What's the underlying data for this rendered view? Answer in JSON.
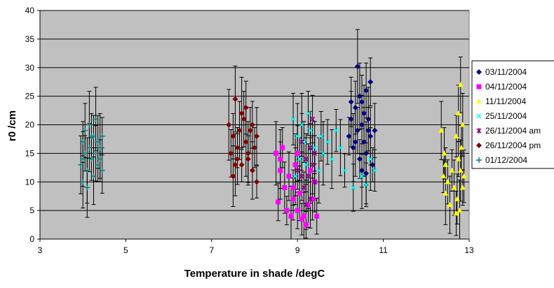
{
  "chart_data": {
    "type": "scatter",
    "title": "",
    "xlabel": "Temperature in shade /degC",
    "ylabel": "r0 /cm",
    "xlim": [
      3,
      13
    ],
    "ylim": [
      0,
      40
    ],
    "x_ticks": [
      3,
      5,
      7,
      9,
      11,
      13
    ],
    "y_ticks": [
      0,
      5,
      10,
      15,
      20,
      25,
      30,
      35,
      40
    ],
    "grid": "horizontal",
    "error_bars": "vertical",
    "legend_position": "right",
    "plot_background": "#c0c0c0",
    "series": [
      {
        "name": "03/11/2004",
        "color": "#000080",
        "marker": "diamond",
        "points": [
          [
            10.2,
            18
          ],
          [
            10.25,
            21
          ],
          [
            10.3,
            16
          ],
          [
            10.35,
            23
          ],
          [
            10.4,
            30.2
          ],
          [
            10.4,
            19
          ],
          [
            10.45,
            25
          ],
          [
            10.45,
            14
          ],
          [
            10.5,
            20
          ],
          [
            10.5,
            12
          ],
          [
            10.55,
            22
          ],
          [
            10.55,
            17
          ],
          [
            10.6,
            26
          ],
          [
            10.6,
            15
          ],
          [
            10.65,
            19
          ],
          [
            10.65,
            21
          ],
          [
            10.7,
            27.5
          ],
          [
            10.7,
            18
          ],
          [
            10.75,
            13
          ],
          [
            10.8,
            19
          ],
          [
            10.35,
            17
          ],
          [
            10.5,
            24
          ],
          [
            10.6,
            11.5
          ],
          [
            10.25,
            24
          ]
        ]
      },
      {
        "name": "04/11/2004",
        "color": "#ff00ff",
        "marker": "square",
        "points": [
          [
            8.5,
            15
          ],
          [
            8.55,
            6.5
          ],
          [
            8.6,
            12
          ],
          [
            8.65,
            16
          ],
          [
            8.7,
            9
          ],
          [
            8.75,
            5
          ],
          [
            8.8,
            11
          ],
          [
            8.85,
            4
          ],
          [
            8.9,
            7
          ],
          [
            8.95,
            13
          ],
          [
            9.0,
            5
          ],
          [
            9.05,
            8
          ],
          [
            9.1,
            3.5
          ],
          [
            9.15,
            4
          ],
          [
            9.2,
            2.5
          ],
          [
            9.25,
            6
          ],
          [
            9.3,
            12
          ],
          [
            9.35,
            7
          ],
          [
            9.4,
            10
          ],
          [
            9.45,
            4
          ],
          [
            8.6,
            14
          ],
          [
            8.9,
            9
          ],
          [
            9.0,
            15
          ]
        ]
      },
      {
        "name": "11/11/2004",
        "color": "#ffff00",
        "marker": "triangle",
        "points": [
          [
            12.35,
            19
          ],
          [
            12.4,
            11
          ],
          [
            12.42,
            15
          ],
          [
            12.45,
            8
          ],
          [
            12.5,
            10
          ],
          [
            12.55,
            6
          ],
          [
            12.6,
            12
          ],
          [
            12.65,
            9
          ],
          [
            12.7,
            18
          ],
          [
            12.72,
            7
          ],
          [
            12.75,
            14
          ],
          [
            12.75,
            22
          ],
          [
            12.78,
            5
          ],
          [
            12.8,
            27
          ],
          [
            12.8,
            12
          ],
          [
            12.82,
            16
          ],
          [
            12.85,
            20
          ],
          [
            12.85,
            9
          ],
          [
            12.88,
            11
          ],
          [
            12.45,
            13
          ],
          [
            12.7,
            4.5
          ]
        ]
      },
      {
        "name": "25/11/2004",
        "color": "#00ffff",
        "marker": "x",
        "points": [
          [
            8.9,
            21
          ],
          [
            9.0,
            18
          ],
          [
            9.05,
            14
          ],
          [
            9.1,
            20
          ],
          [
            9.15,
            17
          ],
          [
            9.2,
            13
          ],
          [
            9.3,
            19
          ],
          [
            9.4,
            16
          ],
          [
            9.5,
            12
          ],
          [
            9.55,
            18
          ],
          [
            9.6,
            15
          ],
          [
            9.7,
            17
          ],
          [
            9.8,
            14
          ],
          [
            9.9,
            19
          ],
          [
            10.0,
            16
          ],
          [
            10.1,
            12
          ],
          [
            10.3,
            9
          ],
          [
            10.5,
            11
          ],
          [
            10.6,
            9.5
          ],
          [
            10.7,
            14
          ],
          [
            10.8,
            12
          ],
          [
            8.95,
            11
          ],
          [
            9.25,
            22
          ]
        ]
      },
      {
        "name": "26/11/2004 am",
        "color": "#800080",
        "marker": "star",
        "points": [
          [
            9.0,
            12
          ],
          [
            9.1,
            17
          ],
          [
            9.15,
            9
          ],
          [
            9.2,
            14
          ],
          [
            9.25,
            11
          ],
          [
            9.3,
            16
          ],
          [
            9.3,
            7
          ],
          [
            9.35,
            21
          ],
          [
            9.35,
            13
          ],
          [
            9.4,
            10
          ],
          [
            9.2,
            6
          ],
          [
            9.4,
            15
          ],
          [
            9.1,
            11
          ]
        ]
      },
      {
        "name": "26/11/2004 pm",
        "color": "#800000",
        "marker": "diamond",
        "points": [
          [
            7.4,
            20
          ],
          [
            7.45,
            15
          ],
          [
            7.5,
            11
          ],
          [
            7.5,
            18
          ],
          [
            7.55,
            24.5
          ],
          [
            7.6,
            16
          ],
          [
            7.65,
            19
          ],
          [
            7.7,
            13
          ],
          [
            7.75,
            21
          ],
          [
            7.8,
            17
          ],
          [
            7.8,
            23
          ],
          [
            7.85,
            15
          ],
          [
            7.9,
            19
          ],
          [
            7.95,
            12
          ],
          [
            8.0,
            16
          ],
          [
            8.05,
            18
          ],
          [
            8.05,
            10
          ],
          [
            7.6,
            14
          ],
          [
            7.7,
            22
          ],
          [
            7.85,
            14
          ],
          [
            7.55,
            13
          ],
          [
            7.95,
            20
          ]
        ]
      },
      {
        "name": "01/12/2004",
        "color": "#008080",
        "marker": "plus",
        "points": [
          [
            3.95,
            13
          ],
          [
            4.0,
            17
          ],
          [
            4.0,
            10
          ],
          [
            4.05,
            15
          ],
          [
            4.05,
            19
          ],
          [
            4.1,
            12
          ],
          [
            4.15,
            16
          ],
          [
            4.15,
            20
          ],
          [
            4.2,
            14
          ],
          [
            4.25,
            11
          ],
          [
            4.25,
            18
          ],
          [
            4.3,
            15
          ],
          [
            4.35,
            13
          ],
          [
            4.35,
            17
          ],
          [
            4.4,
            16
          ],
          [
            4.45,
            12
          ],
          [
            4.1,
            9
          ],
          [
            4.2,
            18
          ],
          [
            4.3,
            21
          ],
          [
            4.4,
            14
          ],
          [
            4.0,
            14
          ],
          [
            4.45,
            18
          ]
        ]
      }
    ]
  }
}
